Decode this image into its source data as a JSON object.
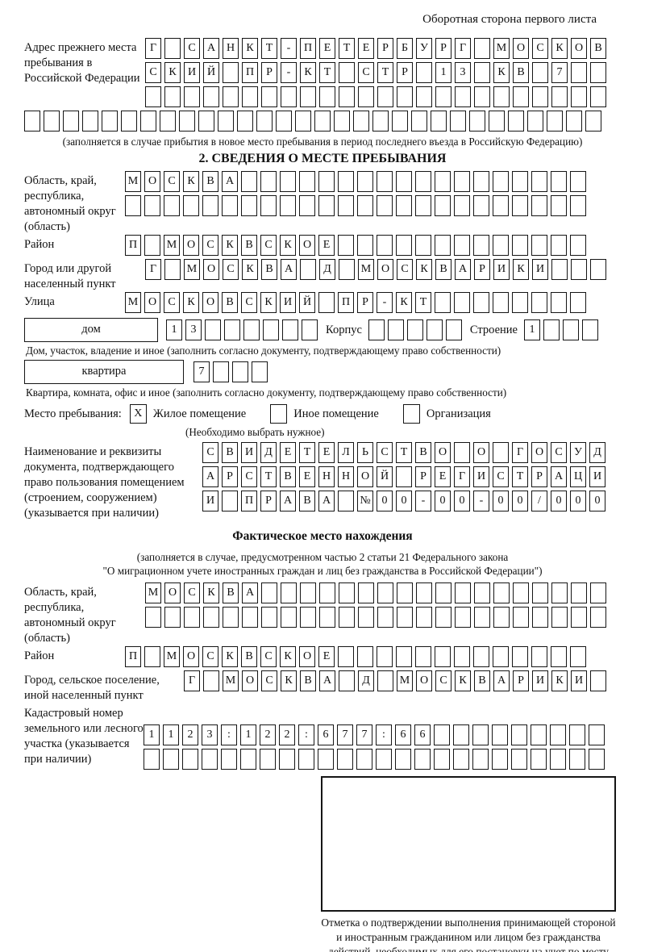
{
  "header": {
    "note": "Оборотная сторона первого листа"
  },
  "prev_address": {
    "label": "Адрес прежнего места пребывания в Российской Федерации",
    "row1": {
      "text": "Г САНКТ-ПЕТЕРБУРГ МОСКОВ",
      "len": 24
    },
    "row2": {
      "text": "СКИЙ ПР-КТ СТР 13 КВ 7",
      "len": 24
    },
    "row3": {
      "text": "",
      "len": 24
    },
    "row4": {
      "text": "",
      "len": 30
    },
    "caption": "(заполняется в случае прибытия в новое место пребывания в период последнего въезда в Российскую Федерацию)"
  },
  "section2": {
    "title": "2. СВЕДЕНИЯ О МЕСТЕ ПРЕБЫВАНИЯ",
    "region": {
      "label": "Область, край, республика, автономный округ (область)",
      "row1": {
        "text": "МОСКВА",
        "len": 24
      },
      "row2": {
        "text": "",
        "len": 24
      }
    },
    "district": {
      "label": "Район",
      "row": {
        "text": "П МОСКВСКОЕ",
        "len": 24
      }
    },
    "city": {
      "label": "Город или другой населенный пункт",
      "row": {
        "text": "Г МОСКВА Д МОСКВАРИКИ",
        "len": 24
      }
    },
    "street": {
      "label": "Улица",
      "row": {
        "text": "МОСКОВСКИЙ ПР-КТ",
        "len": 24
      }
    },
    "house": {
      "box_label": "дом",
      "row": {
        "text": "13",
        "len": 8
      },
      "korpus_label": "Корпус",
      "korpus_row": {
        "text": "",
        "len": 5
      },
      "stroenie_label": "Строение",
      "stroenie_row": {
        "text": "1",
        "len": 4
      },
      "caption": "Дом, участок, владение и иное (заполнить согласно документу, подтверждающему право собственности)"
    },
    "apartment": {
      "box_label": "квартира",
      "row": {
        "text": "7",
        "len": 4
      },
      "caption": "Квартира, комната, офис и иное (заполнить согласно документу, подтверждающему право собственности)"
    },
    "stay": {
      "label": "Место пребывания:",
      "options": [
        {
          "label": "Жилое помещение",
          "checked": "X"
        },
        {
          "label": "Иное помещение",
          "checked": ""
        },
        {
          "label": "Организация",
          "checked": ""
        }
      ],
      "caption": "(Необходимо выбрать нужное)"
    },
    "document": {
      "label": "Наименование и реквизиты документа, подтверждающего право пользования помещением (строением, сооружением) (указывается при наличии)",
      "row1": {
        "text": "СВИДЕТЕЛЬСТВО О ГОСУД",
        "len": 21
      },
      "row2": {
        "text": "АРСТВЕННОЙ РЕГИСТРАЦИ",
        "len": 21
      },
      "row3": {
        "text": "И ПРАВА №00-00-00/000",
        "len": 21
      }
    }
  },
  "actual_location": {
    "title": "Фактическое место нахождения",
    "caption1": "(заполняется в случае, предусмотренном частью 2 статьи 21 Федерального закона",
    "caption2": "\"О миграционном учете иностранных граждан и лиц без гражданства в Российской Федерации\")",
    "region": {
      "label": "Область, край, республика, автономный округ (область)",
      "row1": {
        "text": "МОСКВА",
        "len": 24
      },
      "row2": {
        "text": "",
        "len": 24
      }
    },
    "district": {
      "label": "Район",
      "row": {
        "text": "П МОСКВСКОЕ",
        "len": 24
      }
    },
    "city": {
      "label": "Город, сельское поселение, иной населенный пункт",
      "row": {
        "text": "Г МОСКВА Д МОСКВАРИКИ",
        "len": 22
      }
    },
    "cadastre": {
      "label": "Кадастровый номер земельного или лесного участка (указывается при наличии)",
      "row1": {
        "text": "1123:122:677:66",
        "len": 24
      },
      "row2": {
        "text": "",
        "len": 24
      }
    }
  },
  "stamp": {
    "caption": "Отметка о подтверждении выполнения принимающей стороной и иностранным гражданином или лицом без гражданства действий, необходимых для его постановки на учет по месту пребывания"
  }
}
